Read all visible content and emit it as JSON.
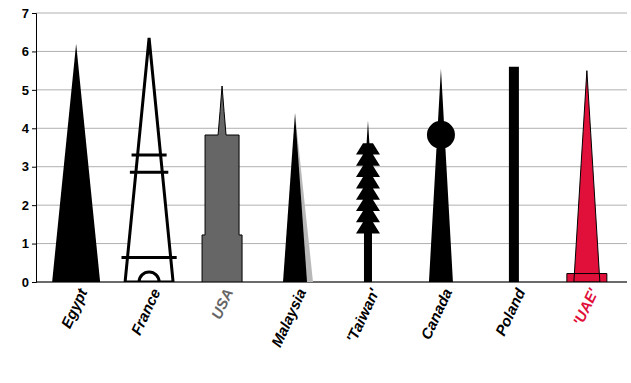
{
  "chart_data": {
    "type": "bar",
    "categories": [
      "Egypt",
      "France",
      "USA",
      "Malaysia",
      "'Taiwan'",
      "Canada",
      "Poland",
      "'UAE'"
    ],
    "values": [
      6.2,
      6.35,
      5.1,
      4.4,
      4.2,
      5.55,
      5.6,
      5.5
    ],
    "colors": [
      "#000000",
      "#000000",
      "#666666",
      "#000000",
      "#000000",
      "#000000",
      "#000000",
      "#e0103a"
    ],
    "ylim": [
      0,
      7
    ],
    "yticks": [
      0,
      1,
      2,
      3,
      4,
      5,
      6,
      7
    ],
    "grid": true
  }
}
